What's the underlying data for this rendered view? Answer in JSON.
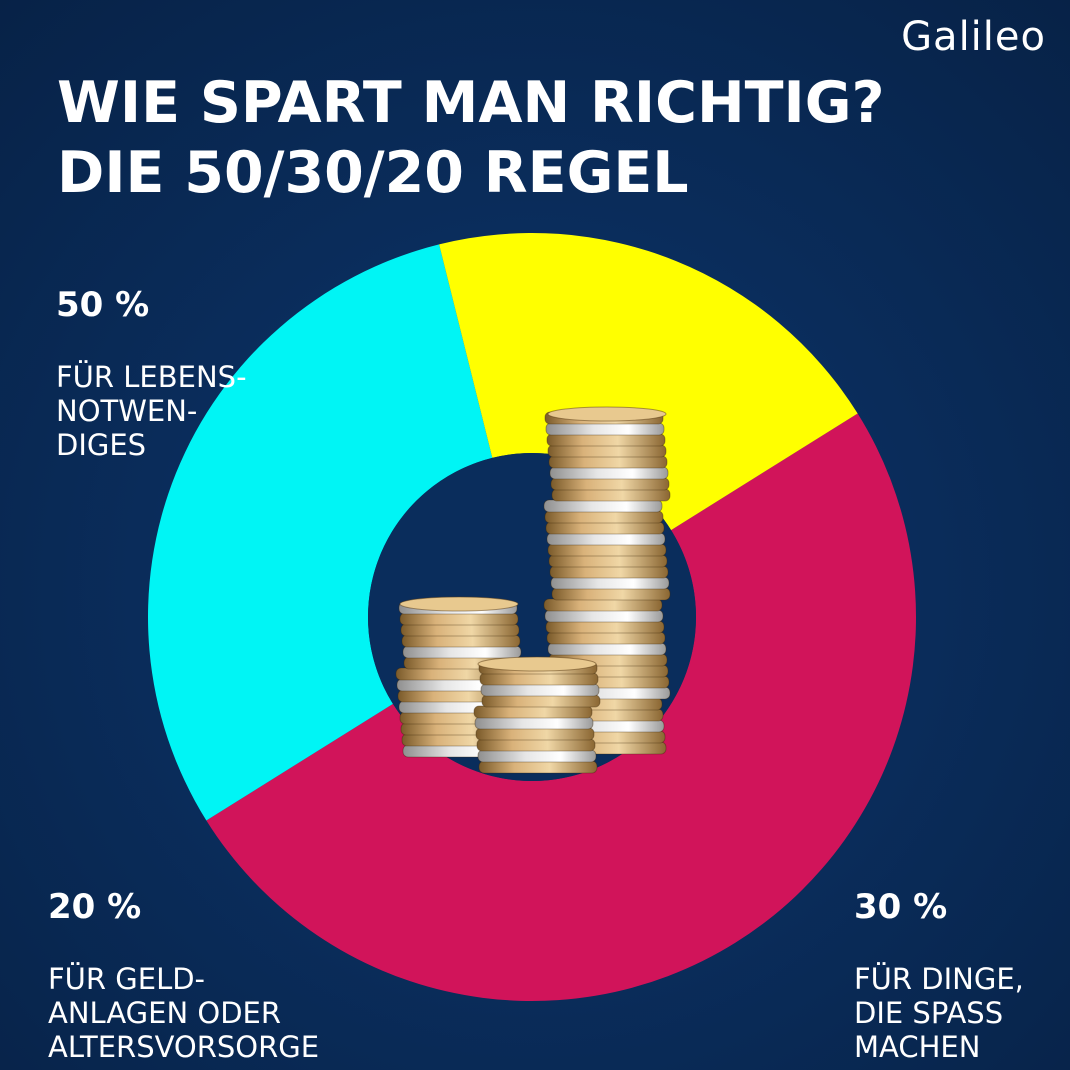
{
  "brand": {
    "logo_text": "Galileo"
  },
  "title_lines": [
    "WIE SPART MAN RICHTIG?",
    "DIE 50/30/20 REGEL"
  ],
  "chart_data": {
    "type": "pie",
    "variant": "donut",
    "title": "WIE SPART MAN RICHTIG? DIE 50/30/20 REGEL",
    "slices": [
      {
        "value": 50,
        "pct_label": "50 %",
        "text": "FÜR LEBENS-\nNOTWEN-\nDIGES",
        "color": "#d1145a"
      },
      {
        "value": 30,
        "pct_label": "30 %",
        "text": "FÜR DINGE,\nDIE SPASS\nMACHEN",
        "color": "#00f5f5"
      },
      {
        "value": 20,
        "pct_label": "20 %",
        "text": "FÜR GELD-\nANLAGEN ODER\nALTERSVORSORGE",
        "color": "#ffff00"
      }
    ]
  },
  "colors": {
    "background": "#0a2d5c",
    "hole": "#0a2d5c",
    "text": "#ffffff"
  },
  "center_image": {
    "icon": "coin-stacks-icon"
  }
}
